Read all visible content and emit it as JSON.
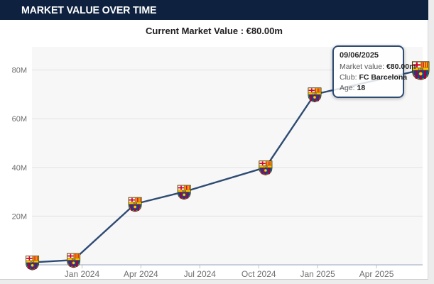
{
  "header": {
    "title": "MARKET VALUE OVER TIME"
  },
  "subtitle": {
    "text": "Current Market Value : €80.00m"
  },
  "tooltip": {
    "date": "09/06/2025",
    "market_value_label": "Market value:",
    "market_value": "€80.00m",
    "club_label": "Club:",
    "club": "FC Barcelona",
    "age_label": "Age:",
    "age": "18"
  },
  "colors": {
    "header_bg": "#0e2240",
    "line": "#2d4b73",
    "plot_bg": "#f7f7f7",
    "gridline": "#e2e2e2",
    "axis_line": "#aab7c8",
    "tick": "#c2c2c2",
    "axis_text": "#6e6e6e",
    "tooltip_border": "#2d4b73"
  },
  "chart_data": {
    "type": "line",
    "title": "Market value over time",
    "marker_icon": "fc-barcelona-crest",
    "grid": "horizontal",
    "x_tick_labels": [
      "Jan 2024",
      "Apr 2024",
      "Jul 2024",
      "Oct 2024",
      "Jan 2025",
      "Apr 2025"
    ],
    "x_tick_months": [
      0,
      3,
      6,
      9,
      12,
      15
    ],
    "y_ticks": [
      20,
      40,
      60,
      80
    ],
    "y_tick_labels": [
      "20M",
      "40M",
      "60M",
      "80M"
    ],
    "xlim_months": [
      -2.55,
      17.35
    ],
    "ylim": [
      0,
      89.5
    ],
    "y_unit": "€ million",
    "points": [
      {
        "date_est": "Oct 2023",
        "x_month": -2.53,
        "value": 1
      },
      {
        "date_est": "Dec 2023",
        "x_month": -0.43,
        "value": 2
      },
      {
        "date_est": "Mar 2024",
        "x_month": 2.7,
        "value": 25
      },
      {
        "date_est": "Jun 2024",
        "x_month": 5.2,
        "value": 30
      },
      {
        "date_est": "Oct 2024",
        "x_month": 9.35,
        "value": 40
      },
      {
        "date_est": "Dec 2024",
        "x_month": 11.85,
        "value": 70
      },
      {
        "date_est": "09/06/2025",
        "x_month": 17.25,
        "value": 80
      }
    ]
  }
}
